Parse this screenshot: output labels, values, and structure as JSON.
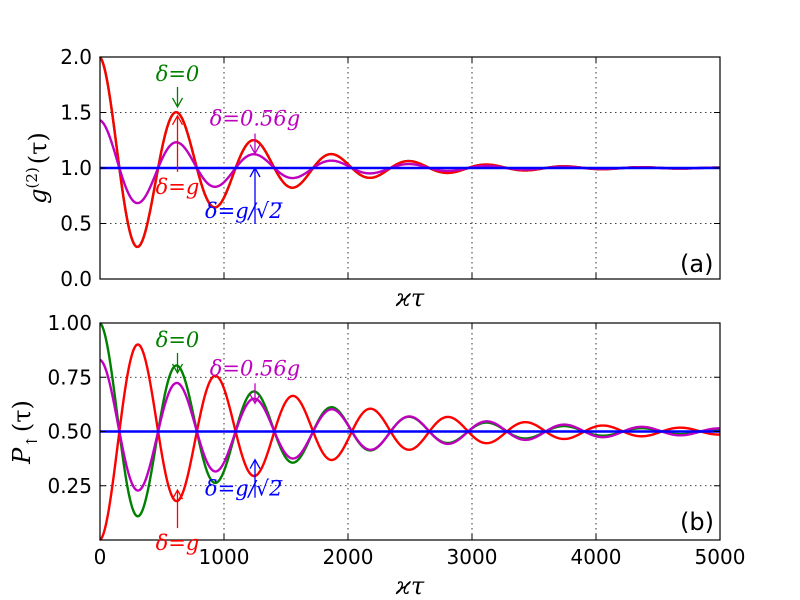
{
  "chart_data": [
    {
      "type": "line",
      "panel_label": "(a)",
      "ylabel_main": "g",
      "ylabel_sup": "(2)",
      "ylabel_arg": "(τ)",
      "xlabel": "ϰτ",
      "xlim": [
        0,
        5000
      ],
      "ylim": [
        0,
        2.0
      ],
      "xticks": [
        0,
        1000,
        2000,
        3000,
        4000,
        5000
      ],
      "xtick_labels_visible": false,
      "yticks": [
        0.0,
        0.5,
        1.0,
        1.5,
        2.0
      ],
      "ytick_labels": [
        "0.0",
        "0.5",
        "1.0",
        "1.5",
        "2.0"
      ],
      "grid": true,
      "series": [
        {
          "name": "δ=0",
          "color": "#008000",
          "model": "1 + A*exp(-x/T)*cos(2*pi*x/P)",
          "A": 1.0,
          "T": 900,
          "P": 625
        },
        {
          "name": "δ=g",
          "color": "#ff0000",
          "model": "1 + A*exp(-x/T)*cos(2*pi*x/P)",
          "A": 1.0,
          "T": 900,
          "P": 625
        },
        {
          "name": "δ=0.56g",
          "color": "#bf00bf",
          "model": "1 + A*exp(-x/T)*cos(2*pi*x/P)",
          "A": 0.43,
          "T": 1000,
          "P": 625
        },
        {
          "name": "δ=g/√2",
          "color": "#0000ff",
          "model": "constant",
          "value": 1.0
        }
      ],
      "annotations": [
        {
          "text": "δ=0",
          "color": "#008000",
          "arrow_tip_x": 625,
          "arrow_tip_y": 1.55,
          "direction": "down"
        },
        {
          "text": "δ=0.56g",
          "color": "#bf00bf",
          "arrow_tip_x": 1250,
          "arrow_tip_y": 1.13,
          "direction": "down"
        },
        {
          "text": "δ=g",
          "color": "#ff0000",
          "arrow_tip_x": 625,
          "arrow_tip_y": 1.47,
          "direction": "up"
        },
        {
          "text": "δ=g/√2",
          "color": "#0000ff",
          "arrow_tip_x": 1250,
          "arrow_tip_y": 1.0,
          "direction": "up"
        }
      ]
    },
    {
      "type": "line",
      "panel_label": "(b)",
      "ylabel_main": "P",
      "ylabel_sub": "↑",
      "ylabel_arg": "(τ)",
      "xlabel": "ϰτ",
      "xlim": [
        0,
        5000
      ],
      "ylim": [
        0,
        1.0
      ],
      "xticks": [
        0,
        1000,
        2000,
        3000,
        4000,
        5000
      ],
      "xtick_labels": [
        "0",
        "1000",
        "2000",
        "3000",
        "4000",
        "5000"
      ],
      "yticks": [
        0.25,
        0.5,
        0.75,
        1.0
      ],
      "ytick_labels": [
        "0.25",
        "0.50",
        "0.75",
        "1.00"
      ],
      "grid": true,
      "series": [
        {
          "name": "δ=0",
          "color": "#008000",
          "model": "0.5 + A*exp(-x/T)*cos(2*pi*x/P)",
          "A": 0.5,
          "T": 1250,
          "P": 625
        },
        {
          "name": "δ=g",
          "color": "#ff0000",
          "model": "0.5 - A*exp(-x/T)*cos(2*pi*x/P)",
          "A": 0.5,
          "T": 1400,
          "P": 625
        },
        {
          "name": "δ=0.56g",
          "color": "#bf00bf",
          "model": "0.5 + A*exp(-x/T)*cos(2*pi*x/P)",
          "A": 0.33,
          "T": 1600,
          "P": 625
        },
        {
          "name": "δ=g/√2",
          "color": "#0000ff",
          "model": "constant",
          "value": 0.5
        }
      ],
      "annotations": [
        {
          "text": "δ=0",
          "color": "#008000",
          "arrow_tip_x": 625,
          "arrow_tip_y": 0.77,
          "direction": "down"
        },
        {
          "text": "δ=0.56g",
          "color": "#bf00bf",
          "arrow_tip_x": 1250,
          "arrow_tip_y": 0.63,
          "direction": "down"
        },
        {
          "text": "δ=g",
          "color": "#ff0000",
          "arrow_tip_x": 625,
          "arrow_tip_y": 0.23,
          "direction": "up"
        },
        {
          "text": "δ=g/√2",
          "color": "#0000ff",
          "arrow_tip_x": 1250,
          "arrow_tip_y": 0.37,
          "direction": "up"
        }
      ]
    }
  ]
}
